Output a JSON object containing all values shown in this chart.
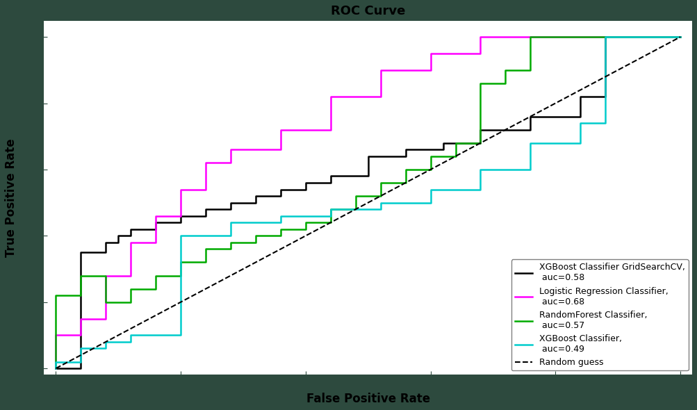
{
  "title": "ROC Curve",
  "xlabel": "False Positive Rate",
  "ylabel": "True Positive Rate",
  "xlim": [
    -0.02,
    1.02
  ],
  "ylim": [
    -0.02,
    1.05
  ],
  "figure_facecolor": "#2d4a3e",
  "axes_facecolor": "#ffffff",
  "spine_color": "#2d4a3e",
  "tick_color": "#2d4a3e",
  "label_color": "#000000",
  "title_color": "#000000",
  "curves": {
    "xgb_gridsearch": {
      "label": "XGBoost Classifier GridSearchCV,\n auc=0.58",
      "color": "#000000",
      "fpr": [
        0.0,
        0.04,
        0.04,
        0.08,
        0.08,
        0.1,
        0.1,
        0.12,
        0.12,
        0.16,
        0.16,
        0.2,
        0.2,
        0.24,
        0.24,
        0.28,
        0.28,
        0.32,
        0.32,
        0.36,
        0.36,
        0.4,
        0.4,
        0.44,
        0.44,
        0.5,
        0.5,
        0.56,
        0.56,
        0.62,
        0.62,
        0.68,
        0.68,
        0.76,
        0.76,
        0.84,
        0.84,
        0.88,
        0.88,
        1.0
      ],
      "tpr": [
        0.0,
        0.0,
        0.35,
        0.35,
        0.38,
        0.38,
        0.4,
        0.4,
        0.42,
        0.42,
        0.44,
        0.44,
        0.46,
        0.46,
        0.48,
        0.48,
        0.5,
        0.5,
        0.52,
        0.52,
        0.54,
        0.54,
        0.56,
        0.56,
        0.58,
        0.58,
        0.64,
        0.64,
        0.66,
        0.66,
        0.68,
        0.68,
        0.72,
        0.72,
        0.76,
        0.76,
        0.82,
        0.82,
        1.0,
        1.0
      ]
    },
    "logistic": {
      "label": "Logistic Regression Classifier,\n auc=0.68",
      "color": "#ff00ff",
      "fpr": [
        0.0,
        0.0,
        0.04,
        0.04,
        0.08,
        0.08,
        0.12,
        0.12,
        0.16,
        0.16,
        0.2,
        0.2,
        0.24,
        0.24,
        0.28,
        0.28,
        0.36,
        0.36,
        0.44,
        0.44,
        0.52,
        0.52,
        0.6,
        0.6,
        0.68,
        0.68,
        0.72,
        0.72,
        1.0
      ],
      "tpr": [
        0.0,
        0.1,
        0.1,
        0.15,
        0.15,
        0.28,
        0.28,
        0.38,
        0.38,
        0.46,
        0.46,
        0.54,
        0.54,
        0.62,
        0.62,
        0.66,
        0.66,
        0.72,
        0.72,
        0.82,
        0.82,
        0.9,
        0.9,
        0.95,
        0.95,
        1.0,
        1.0,
        1.0,
        1.0
      ]
    },
    "rf": {
      "label": "RandomForest Classifier,\n auc=0.57",
      "color": "#00aa00",
      "fpr": [
        0.0,
        0.0,
        0.04,
        0.04,
        0.08,
        0.08,
        0.12,
        0.12,
        0.16,
        0.16,
        0.2,
        0.2,
        0.24,
        0.24,
        0.28,
        0.28,
        0.32,
        0.32,
        0.36,
        0.36,
        0.4,
        0.4,
        0.44,
        0.44,
        0.48,
        0.48,
        0.52,
        0.52,
        0.56,
        0.56,
        0.6,
        0.6,
        0.64,
        0.64,
        0.68,
        0.68,
        0.72,
        0.72,
        0.76,
        0.76,
        0.8,
        0.8,
        0.84,
        0.84,
        1.0
      ],
      "tpr": [
        0.0,
        0.22,
        0.22,
        0.28,
        0.28,
        0.2,
        0.2,
        0.24,
        0.24,
        0.28,
        0.28,
        0.32,
        0.32,
        0.36,
        0.36,
        0.38,
        0.38,
        0.4,
        0.4,
        0.42,
        0.42,
        0.44,
        0.44,
        0.48,
        0.48,
        0.52,
        0.52,
        0.56,
        0.56,
        0.6,
        0.6,
        0.64,
        0.64,
        0.68,
        0.68,
        0.86,
        0.86,
        0.9,
        0.9,
        1.0,
        1.0,
        1.0,
        1.0,
        1.0,
        1.0
      ]
    },
    "xgb": {
      "label": "XGBoost Classifier,\n auc=0.49",
      "color": "#00cccc",
      "fpr": [
        0.0,
        0.0,
        0.04,
        0.04,
        0.08,
        0.08,
        0.12,
        0.12,
        0.2,
        0.2,
        0.28,
        0.28,
        0.36,
        0.36,
        0.44,
        0.44,
        0.52,
        0.52,
        0.6,
        0.6,
        0.68,
        0.68,
        0.76,
        0.76,
        0.84,
        0.84,
        0.88,
        0.88,
        1.0
      ],
      "tpr": [
        0.0,
        0.02,
        0.02,
        0.06,
        0.06,
        0.08,
        0.08,
        0.1,
        0.1,
        0.4,
        0.4,
        0.44,
        0.44,
        0.46,
        0.46,
        0.48,
        0.48,
        0.5,
        0.5,
        0.54,
        0.54,
        0.6,
        0.6,
        0.68,
        0.68,
        0.74,
        0.74,
        1.0,
        1.0
      ]
    }
  },
  "random_guess": {
    "label": "Random guess",
    "color": "#000000"
  },
  "legend_fontsize": 9,
  "tick_fontsize": 11,
  "axis_label_fontsize": 12,
  "title_fontsize": 13
}
